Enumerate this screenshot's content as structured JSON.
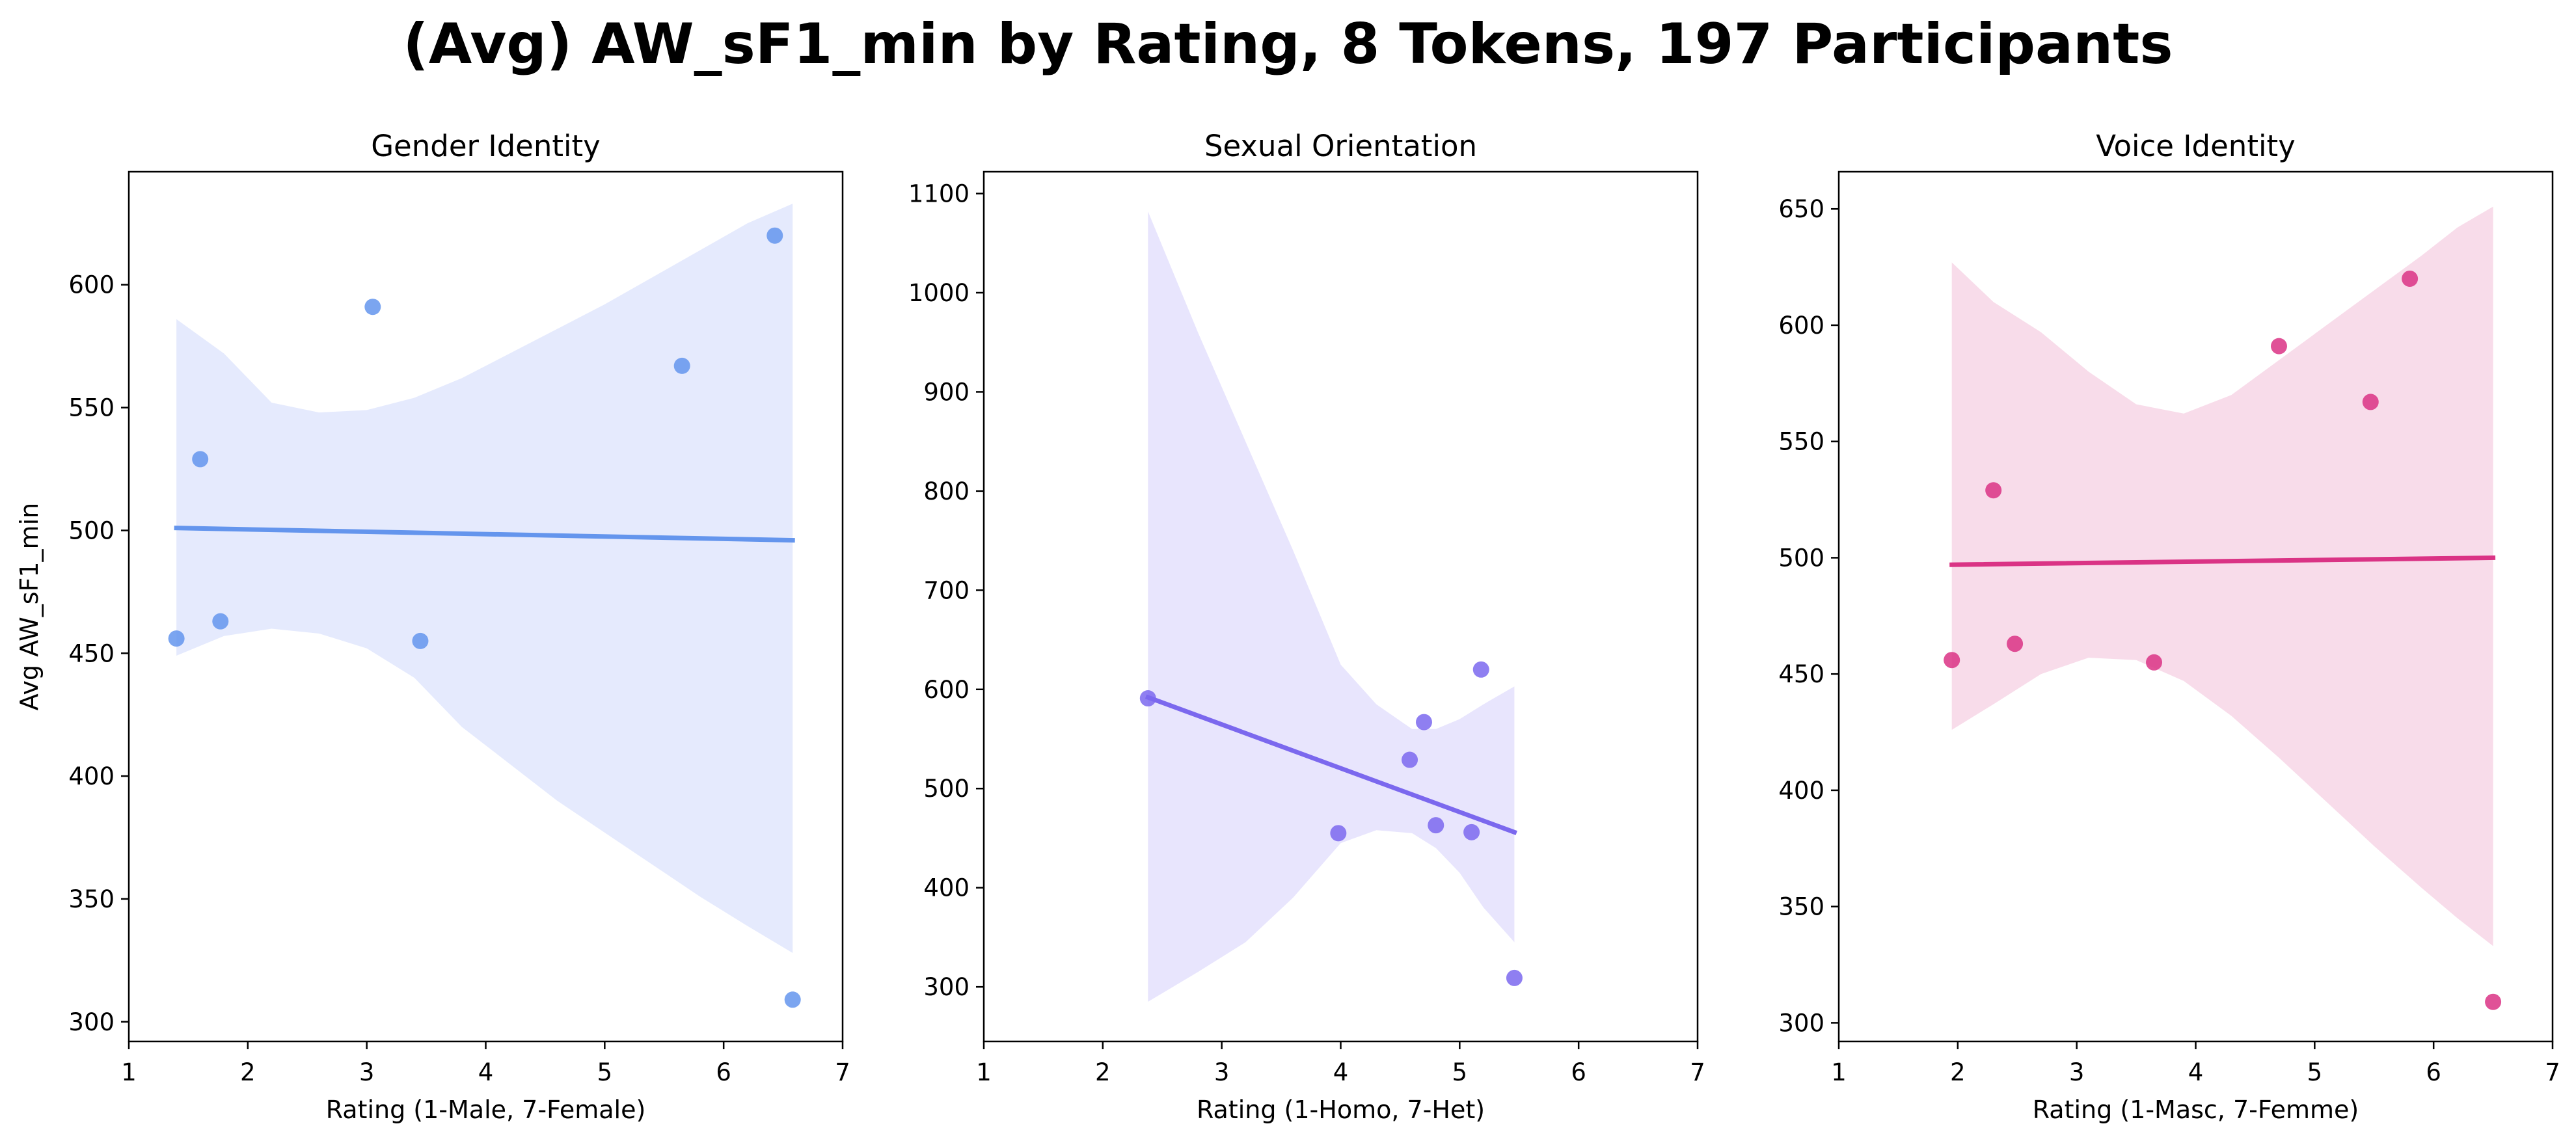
{
  "figure": {
    "title": "(Avg) AW_sF1_min by Rating, 8 Tokens, 197 Participants"
  },
  "chart_data": [
    {
      "type": "scatter",
      "title": "Gender Identity",
      "xlabel": "Rating (1-Male, 7-Female)",
      "ylabel": "Avg AW_sF1_min",
      "xlim": [
        1,
        7
      ],
      "ylim": [
        292,
        646
      ],
      "xticks": [
        1,
        2,
        3,
        4,
        5,
        6,
        7
      ],
      "yticks": [
        300,
        350,
        400,
        450,
        500,
        550,
        600
      ],
      "grid": false,
      "point_color": "#6495ED",
      "line_color": "#6495ED",
      "band_color": "#E5EAFD",
      "points": [
        {
          "x": 1.4,
          "y": 456
        },
        {
          "x": 1.6,
          "y": 529
        },
        {
          "x": 1.77,
          "y": 463
        },
        {
          "x": 3.05,
          "y": 591
        },
        {
          "x": 3.45,
          "y": 455
        },
        {
          "x": 5.65,
          "y": 567
        },
        {
          "x": 6.43,
          "y": 620
        },
        {
          "x": 6.58,
          "y": 309
        }
      ],
      "regression": {
        "x": [
          1.4,
          6.58
        ],
        "y": [
          501,
          496
        ]
      },
      "band": {
        "x": [
          1.4,
          1.8,
          2.2,
          2.6,
          3.0,
          3.4,
          3.8,
          4.2,
          4.6,
          5.0,
          5.4,
          5.8,
          6.2,
          6.58
        ],
        "upper": [
          586,
          572,
          552,
          548,
          549,
          554,
          562,
          572,
          582,
          592,
          603,
          614,
          625,
          633
        ],
        "lower": [
          449,
          457,
          460,
          458,
          452,
          440,
          420,
          405,
          390,
          377,
          364,
          351,
          339,
          328
        ]
      }
    },
    {
      "type": "scatter",
      "title": "Sexual Orientation",
      "xlabel": "Rating (1-Homo, 7-Het)",
      "ylabel": "",
      "xlim": [
        1,
        7
      ],
      "ylim": [
        245,
        1122
      ],
      "xticks": [
        1,
        2,
        3,
        4,
        5,
        6,
        7
      ],
      "yticks": [
        300,
        400,
        500,
        600,
        700,
        800,
        900,
        1000,
        1100
      ],
      "grid": false,
      "point_color": "#7B68EE",
      "line_color": "#7B68EE",
      "band_color": "#E8E5FD",
      "points": [
        {
          "x": 2.38,
          "y": 591
        },
        {
          "x": 3.98,
          "y": 455
        },
        {
          "x": 4.58,
          "y": 529
        },
        {
          "x": 4.7,
          "y": 567
        },
        {
          "x": 4.8,
          "y": 463
        },
        {
          "x": 5.1,
          "y": 456
        },
        {
          "x": 5.18,
          "y": 620
        },
        {
          "x": 5.46,
          "y": 309
        }
      ],
      "regression": {
        "x": [
          2.38,
          5.46
        ],
        "y": [
          592,
          456
        ]
      },
      "band": {
        "x": [
          2.38,
          2.8,
          3.2,
          3.6,
          4.0,
          4.3,
          4.6,
          4.8,
          5.0,
          5.2,
          5.46
        ],
        "upper": [
          1082,
          960,
          850,
          740,
          625,
          585,
          560,
          560,
          570,
          585,
          603
        ],
        "lower": [
          285,
          315,
          345,
          390,
          445,
          458,
          455,
          440,
          415,
          380,
          345
        ]
      }
    },
    {
      "type": "scatter",
      "title": "Voice Identity",
      "xlabel": "Rating (1-Masc, 7-Femme)",
      "ylabel": "",
      "xlim": [
        1,
        7
      ],
      "ylim": [
        292,
        666
      ],
      "xticks": [
        1,
        2,
        3,
        4,
        5,
        6,
        7
      ],
      "yticks": [
        300,
        350,
        400,
        450,
        500,
        550,
        600,
        650
      ],
      "grid": false,
      "point_color": "#DA3385",
      "line_color": "#DA3385",
      "band_color": "#F8DCEA",
      "points": [
        {
          "x": 1.95,
          "y": 456
        },
        {
          "x": 2.3,
          "y": 529
        },
        {
          "x": 2.48,
          "y": 463
        },
        {
          "x": 3.65,
          "y": 455
        },
        {
          "x": 4.7,
          "y": 591
        },
        {
          "x": 5.47,
          "y": 567
        },
        {
          "x": 5.8,
          "y": 620
        },
        {
          "x": 6.5,
          "y": 309
        }
      ],
      "regression": {
        "x": [
          1.95,
          6.5
        ],
        "y": [
          497,
          500
        ]
      },
      "band": {
        "x": [
          1.95,
          2.3,
          2.7,
          3.1,
          3.5,
          3.9,
          4.3,
          4.7,
          5.1,
          5.5,
          5.9,
          6.2,
          6.5
        ],
        "upper": [
          627,
          610,
          597,
          580,
          566,
          562,
          570,
          585,
          600,
          615,
          630,
          642,
          651
        ],
        "lower": [
          426,
          437,
          450,
          457,
          456,
          447,
          432,
          414,
          395,
          376,
          358,
          345,
          333
        ]
      }
    }
  ]
}
